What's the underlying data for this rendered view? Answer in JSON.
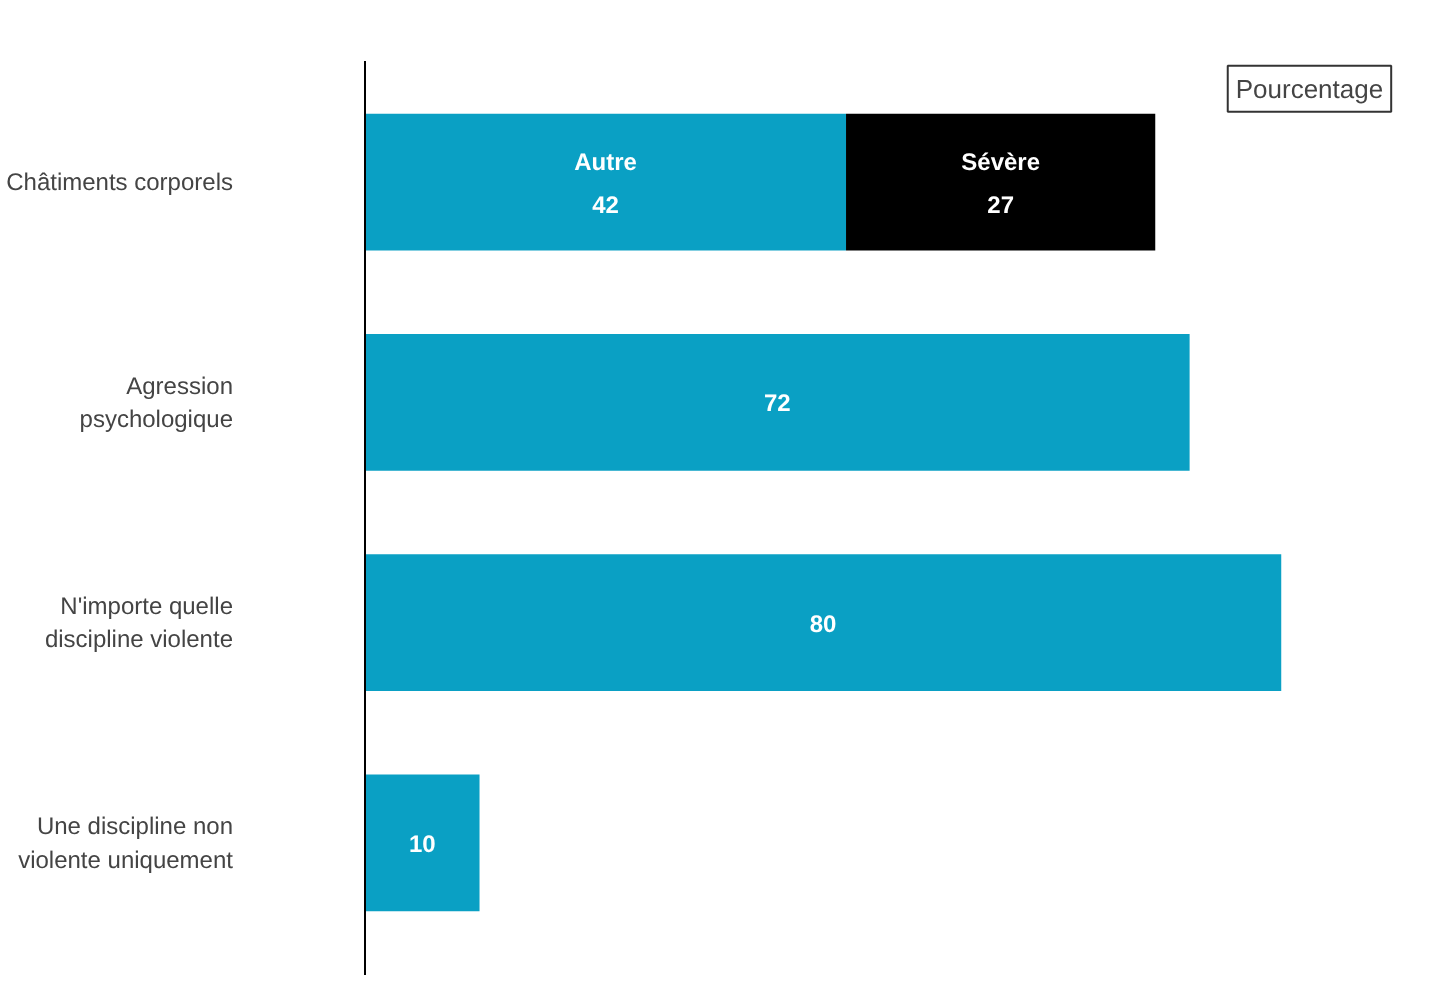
{
  "chart_data": {
    "type": "bar",
    "orientation": "horizontal",
    "stacked": true,
    "categories": [
      "Châtiments corporels",
      "Agression psychologique",
      "N'importe quelle discipline violente",
      "Une discipline non violente uniquement"
    ],
    "series": [
      {
        "name": "Autre",
        "color": "#0aa0c4",
        "values": [
          42,
          72,
          80,
          10
        ]
      },
      {
        "name": "Sévère",
        "color": "#000000",
        "values": [
          27,
          null,
          null,
          null
        ]
      }
    ],
    "data_labels": true,
    "annotations": [
      "Pourcentage"
    ]
  }
}
